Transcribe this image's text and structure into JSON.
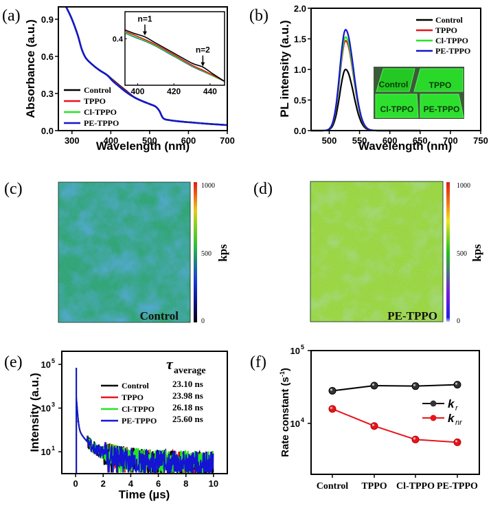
{
  "figure": {
    "panel_labels": [
      "(a)",
      "(b)",
      "(c)",
      "(d)",
      "(e)",
      "(f)"
    ]
  },
  "colors": {
    "Control": "#000000",
    "TPPO": "#e8141b",
    "Cl-TPPO": "#22e622",
    "PE-TPPO": "#1414d2"
  },
  "chart_data": [
    {
      "id": "a",
      "type": "line",
      "title": "",
      "xlabel": "Wavelength (nm)",
      "ylabel": "Absorbance (a.u.)",
      "xlim": [
        265,
        700
      ],
      "ylim": [
        0.0,
        1.0
      ],
      "xticks": [
        300,
        400,
        500,
        600,
        700
      ],
      "yticks": [
        0.0,
        0.3,
        0.6,
        0.9
      ],
      "ytick_labels": [
        "0.0",
        "0.3",
        "0.6",
        "0.9"
      ],
      "legend": [
        "Control",
        "TPPO",
        "Cl-TPPO",
        "PE-TPPO"
      ],
      "legend_position": "bottom-left",
      "series": [
        {
          "name": "Control",
          "x": [
            285,
            300,
            315,
            325,
            335,
            350,
            370,
            390,
            405,
            420,
            440,
            460,
            480,
            500,
            515,
            525,
            535,
            550,
            575,
            600,
            650,
            700
          ],
          "y": [
            1.0,
            0.9,
            0.77,
            0.66,
            0.59,
            0.54,
            0.49,
            0.45,
            0.41,
            0.37,
            0.32,
            0.27,
            0.24,
            0.215,
            0.195,
            0.16,
            0.1,
            0.085,
            0.075,
            0.068,
            0.055,
            0.045
          ]
        },
        {
          "name": "TPPO",
          "x": [
            285,
            300,
            315,
            325,
            335,
            350,
            370,
            390,
            405,
            420,
            440,
            460,
            480,
            500,
            515,
            525,
            535,
            550,
            575,
            600,
            650,
            700
          ],
          "y": [
            1.0,
            0.9,
            0.77,
            0.66,
            0.59,
            0.54,
            0.49,
            0.45,
            0.405,
            0.365,
            0.315,
            0.27,
            0.24,
            0.215,
            0.195,
            0.16,
            0.1,
            0.085,
            0.075,
            0.068,
            0.055,
            0.045
          ]
        },
        {
          "name": "Cl-TPPO",
          "x": [
            285,
            300,
            315,
            325,
            335,
            350,
            370,
            390,
            405,
            420,
            440,
            460,
            480,
            500,
            515,
            525,
            535,
            550,
            575,
            600,
            650,
            700
          ],
          "y": [
            1.0,
            0.9,
            0.77,
            0.66,
            0.59,
            0.54,
            0.49,
            0.45,
            0.4,
            0.36,
            0.31,
            0.27,
            0.24,
            0.215,
            0.195,
            0.16,
            0.1,
            0.085,
            0.075,
            0.068,
            0.055,
            0.045
          ]
        },
        {
          "name": "PE-TPPO",
          "x": [
            285,
            300,
            315,
            325,
            335,
            350,
            370,
            390,
            405,
            420,
            440,
            460,
            480,
            500,
            515,
            525,
            535,
            550,
            575,
            600,
            650,
            700
          ],
          "y": [
            1.0,
            0.9,
            0.77,
            0.66,
            0.59,
            0.54,
            0.49,
            0.45,
            0.4,
            0.36,
            0.31,
            0.27,
            0.24,
            0.215,
            0.195,
            0.16,
            0.1,
            0.085,
            0.075,
            0.068,
            0.055,
            0.045
          ]
        }
      ],
      "inset": {
        "xlim": [
          393,
          448
        ],
        "ylim": [
          0.28,
          0.47
        ],
        "xticks": [
          400,
          420,
          440
        ],
        "yticks": [
          0.4
        ],
        "ytick_labels": [
          "0.4"
        ],
        "annotations": [
          {
            "text": "n=1",
            "x": 404,
            "y": 0.405
          },
          {
            "text": "n=2",
            "x": 436,
            "y": 0.325
          }
        ],
        "series": [
          {
            "name": "Control",
            "x": [
              393,
              398,
              404,
              410,
              420,
              430,
              436,
              442,
              448
            ],
            "y": [
              0.423,
              0.414,
              0.405,
              0.389,
              0.363,
              0.337,
              0.327,
              0.308,
              0.29
            ]
          },
          {
            "name": "TPPO",
            "x": [
              393,
              398,
              404,
              410,
              420,
              430,
              436,
              442,
              448
            ],
            "y": [
              0.419,
              0.41,
              0.398,
              0.385,
              0.359,
              0.332,
              0.319,
              0.305,
              0.29
            ]
          },
          {
            "name": "Cl-TPPO",
            "x": [
              393,
              398,
              404,
              410,
              420,
              430,
              436,
              442,
              448
            ],
            "y": [
              0.416,
              0.406,
              0.395,
              0.382,
              0.356,
              0.33,
              0.317,
              0.303,
              0.29
            ]
          },
          {
            "name": "PE-TPPO",
            "x": [
              393,
              398,
              404,
              410,
              420,
              430,
              436,
              442,
              448
            ],
            "y": [
              0.415,
              0.405,
              0.394,
              0.381,
              0.355,
              0.329,
              0.316,
              0.303,
              0.29
            ]
          }
        ]
      }
    },
    {
      "id": "b",
      "type": "line",
      "title": "",
      "xlabel": "Wavelength (nm)",
      "ylabel": "PL intensity (a.u.)",
      "xlim": [
        470,
        750
      ],
      "ylim": [
        0.0,
        2.0
      ],
      "xticks": [
        500,
        550,
        600,
        650,
        700,
        750
      ],
      "yticks": [
        0.0,
        0.5,
        1.0,
        1.5,
        2.0
      ],
      "ytick_labels": [
        "0.0",
        "0.5",
        "1.0",
        "1.5",
        "2.0"
      ],
      "legend": [
        "Control",
        "TPPO",
        "Cl-TPPO",
        "PE-TPPO"
      ],
      "legend_position": "top-right",
      "peak_wavelength": 527,
      "series": [
        {
          "name": "Control",
          "peak": 1.0
        },
        {
          "name": "TPPO",
          "peak": 1.47
        },
        {
          "name": "Cl-TPPO",
          "peak": 1.53
        },
        {
          "name": "PE-TPPO",
          "peak": 1.65
        }
      ],
      "x_end": 650,
      "photo_inset_labels": [
        "Control",
        "TPPO",
        "Cl-TPPO",
        "PE-TPPO"
      ]
    },
    {
      "id": "c",
      "type": "heatmap",
      "label": "Control",
      "colorbar_label": "kps",
      "colorbar_ticks": [
        "0",
        "500",
        "1000"
      ],
      "colorbar_range": [
        0,
        1000
      ],
      "mean_level": 0.42
    },
    {
      "id": "d",
      "type": "heatmap",
      "label": "PE-TPPO",
      "colorbar_label": "kps",
      "colorbar_ticks": [
        "0",
        "500",
        "1000"
      ],
      "colorbar_range": [
        0,
        1000
      ],
      "mean_level": 0.58
    },
    {
      "id": "e",
      "type": "line",
      "title": "",
      "xlabel": "Time (µs)",
      "ylabel": "Intensity (a.u.)",
      "yscale": "log",
      "xlim": [
        -1,
        11
      ],
      "ylim_log10": [
        0,
        5.6
      ],
      "xticks": [
        0,
        2,
        4,
        6,
        8,
        10
      ],
      "yticks_log10": [
        1,
        3,
        5
      ],
      "ytick_labels": [
        "10",
        "10",
        "10"
      ],
      "ytick_exponents": [
        "1",
        "3",
        "5"
      ],
      "legend": [
        "Control",
        "TPPO",
        "Cl-TPPO",
        "PE-TPPO"
      ],
      "legend_position": "top-right",
      "tau_header": "τ",
      "tau_header_sub": "average",
      "tau_average": [
        "23.10 ns",
        "23.98 ns",
        "26.18 ns",
        "25.60 ns"
      ],
      "series": [
        {
          "name": "Control",
          "peak": 70000,
          "tau_ns": 23.1
        },
        {
          "name": "TPPO",
          "peak": 250,
          "tau_ns": 23.98
        },
        {
          "name": "Cl-TPPO",
          "peak": 70000,
          "tau_ns": 26.18
        },
        {
          "name": "PE-TPPO",
          "peak": 70000,
          "tau_ns": 25.6
        }
      ]
    },
    {
      "id": "f",
      "type": "line",
      "title": "",
      "xlabel": "",
      "ylabel": "Rate constant (s",
      "ylabel_sup": "-1",
      "ylabel_end": ")",
      "yscale": "log",
      "ylim_log10": [
        3.3,
        5
      ],
      "yticks_log10": [
        4,
        5
      ],
      "ytick_labels": [
        "10",
        "10"
      ],
      "ytick_exponents": [
        "4",
        "5"
      ],
      "categories": [
        "Control",
        "TPPO",
        "Cl-TPPO",
        "PE-TPPO"
      ],
      "legend_position": "right",
      "series": [
        {
          "name": "k",
          "sub": "r",
          "color": "#000000",
          "values": [
            28000,
            33000,
            32500,
            34000
          ]
        },
        {
          "name": "k",
          "sub": "nr",
          "color": "#e8141b",
          "values": [
            15800,
            9200,
            6000,
            5500
          ]
        }
      ]
    }
  ]
}
